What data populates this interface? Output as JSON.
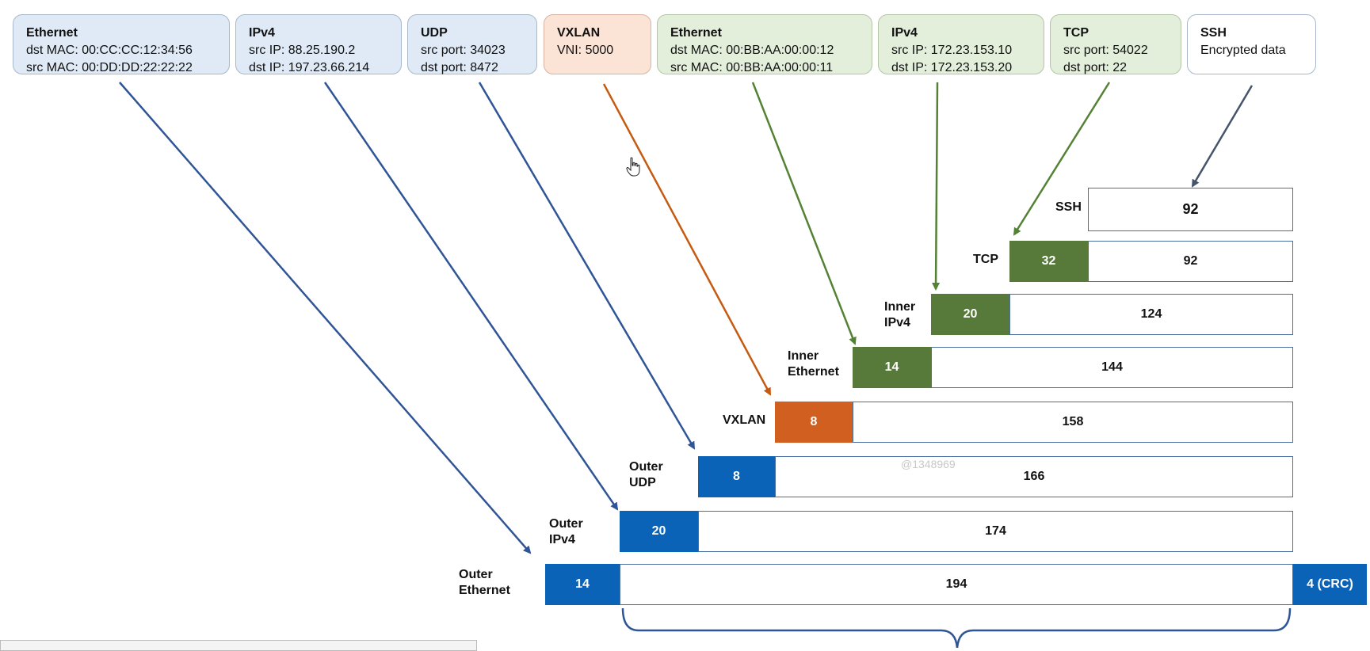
{
  "headers": [
    {
      "title": "Ethernet",
      "lines": [
        "dst MAC: 00:CC:CC:12:34:56",
        "src MAC: 00:DD:DD:22:22:22"
      ]
    },
    {
      "title": "IPv4",
      "lines": [
        "src IP: 88.25.190.2",
        "dst IP: 197.23.66.214"
      ]
    },
    {
      "title": "UDP",
      "lines": [
        "src port: 34023",
        "dst port: 8472"
      ]
    },
    {
      "title": "VXLAN",
      "lines": [
        "VNI: 5000"
      ]
    },
    {
      "title": "Ethernet",
      "lines": [
        "dst MAC: 00:BB:AA:00:00:12",
        "src MAC: 00:BB:AA:00:00:11"
      ]
    },
    {
      "title": "IPv4",
      "lines": [
        "src IP: 172.23.153.10",
        "dst IP: 172.23.153.20"
      ]
    },
    {
      "title": "TCP",
      "lines": [
        "src port: 54022",
        "dst port: 22"
      ]
    },
    {
      "title": "SSH",
      "lines": [
        "Encrypted data"
      ]
    }
  ],
  "layers": [
    {
      "label": "SSH",
      "payload": "92"
    },
    {
      "label": "TCP",
      "header": "32",
      "payload": "92"
    },
    {
      "label": "Inner IPv4",
      "header": "20",
      "payload": "124"
    },
    {
      "label": "Inner Ethernet",
      "header": "14",
      "payload": "144"
    },
    {
      "label": "VXLAN",
      "header": "8",
      "payload": "158"
    },
    {
      "label": "Outer UDP",
      "header": "8",
      "payload": "166"
    },
    {
      "label": "Outer IPv4",
      "header": "20",
      "payload": "174"
    },
    {
      "label": "Outer Ethernet",
      "header": "14",
      "payload": "194",
      "trailer": "4 (CRC)"
    }
  ],
  "watermark": "@1348969",
  "colors": {
    "outer": "#0b63b8",
    "vxlan": "#d05f20",
    "inner": "#57793a",
    "arrow_blue": "#2f5597",
    "arrow_orange": "#c55a11",
    "arrow_green": "#548235",
    "arrow_gray": "#44546a"
  }
}
